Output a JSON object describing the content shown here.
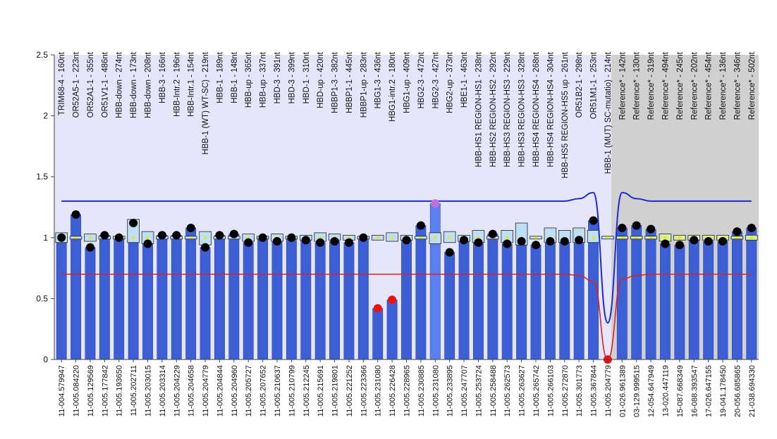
{
  "chart_data": {
    "type": "bar",
    "title": "",
    "xlabel": "",
    "ylabel": "",
    "ylim": [
      0,
      2.5
    ],
    "yticks": [
      0,
      0.5,
      1,
      1.5,
      2,
      2.5
    ],
    "ytick_labels": [
      "0",
      "0.5",
      "1",
      "1.5",
      "2",
      "2.5"
    ],
    "reference_region_start_index": 38,
    "colors": {
      "sample_region": "#e6e6fb",
      "reference_region": "#d0d0d0",
      "bar": "#3d5fd6",
      "bar_highlight": "#5b7ff0",
      "upper_limit": "#1f2bd0",
      "lower_limit": "#e02020",
      "dot": "#000000",
      "dot_low": "#ee1111",
      "dot_high": "#c070d8",
      "box_fill": "#bfe0f4",
      "box_fill_reference": "#d6f0a0",
      "median_mark": "#f5e000"
    },
    "probes": [
      "TRIM68-4 - 160nt",
      "OR52A5-1 - 223nt",
      "OR52A1-1 - 355nt",
      "OR51V1-1 - 486nt",
      "HBB-down - 274nt",
      "HBB-down - 173nt",
      "HBB-down - 208nt",
      "HBB-3 - 166nt",
      "HBB-Intr.2 - 196nt",
      "HBB-Intr.1 - 154nt",
      "HBB-1 (WT) WT-SC) - 219nt",
      "HBB-1 - 189nt",
      "HBB-1 - 148nt",
      "HBB-up - 365nt",
      "HBB-up - 337nt",
      "HBD-3 - 391nt",
      "HBD-3 - 399nt",
      "HBD-1 - 310nt",
      "HBD-up - 420nt",
      "HBBP1-3 - 382nt",
      "HBBP1-1 - 445nt",
      "HBBP1-up - 283nt",
      "HBG1-3 - 436nt",
      "HBG1-intr.2 - 180nt",
      "HBG1-up - 409nt",
      "HBG2-3 - 472nt",
      "HBG2-3 - 427nt",
      "HBG2-up - 373nt",
      "HBE1-1 - 463nt",
      "HBB-HS1 REGION-HS1 - 238nt",
      "HBB-HS2 REGION-HS2 - 292nt",
      "HBB-HS3 REGION-HS3 - 229nt",
      "HBB-HS3 REGION-HS3 - 328nt",
      "HBB-HS4 REGION-HS4 - 268nt",
      "HBB-HS4 REGION-HS4 - 304nt",
      "HBB-HS5 REGION-HS5 up - 261nt",
      "OR51B2-1 - 298nt",
      "OR51M1-1 - 253nt",
      "HBB-1 (MUT) SC-mutatio) - 214nt",
      "Reference* - 142nt",
      "Reference* - 130nt",
      "Reference* - 319nt",
      "Reference* - 494nt",
      "Reference* - 245nt",
      "Reference* - 202nt",
      "Reference* - 454nt",
      "Reference* - 136nt",
      "Reference* - 346nt",
      "Reference* - 502nt"
    ],
    "categories": [
      "11-004.579947",
      "11-005.084220",
      "11-005.129569",
      "11-005.177842",
      "11-005.193650",
      "11-005.202711",
      "11-005.203015",
      "11-005.203314",
      "11-005.204229",
      "11-005.204658",
      "11-005.204779",
      "11-005.204844",
      "11-005.204960",
      "11-005.205727",
      "11-005.207652",
      "11-005.210637",
      "11-005.210799",
      "11-005.212245",
      "11-005.215691",
      "11-005.219801",
      "11-005.221252",
      "11-005.223366",
      "11-005.231080",
      "11-005.226428",
      "11-005.228965",
      "11-005.230885",
      "11-005.231080",
      "11-005.233895",
      "11-005.247707",
      "11-005.253724",
      "11-005.258488",
      "11-005.262573",
      "11-005.263627",
      "11-005.265742",
      "11-005.266103",
      "11-005.272870",
      "11-005.301773",
      "11-005.367844",
      "11-005.204779",
      "01-026.961389",
      "03-129.999515",
      "12-054.647949",
      "13-020.447119",
      "15-087.668349",
      "16-088.393547",
      "17-026.647155",
      "19-041.178450",
      "20-056.685865",
      "21-038.694330"
    ],
    "series": [
      {
        "values": [
          1.0,
          1.19,
          0.92,
          1.02,
          1.0,
          1.12,
          0.95,
          1.02,
          1.02,
          1.08,
          0.92,
          1.02,
          1.03,
          0.96,
          1.0,
          0.97,
          1.0,
          0.98,
          0.96,
          0.97,
          0.96,
          1.0,
          0.42,
          0.49,
          0.98,
          1.1,
          1.28,
          0.88,
          0.98,
          0.96,
          1.03,
          0.95,
          0.97,
          0.94,
          0.97,
          0.97,
          0.98,
          1.14,
          0.0,
          1.08,
          1.1,
          1.07,
          0.95,
          0.94,
          0.98,
          0.97,
          0.97,
          1.05,
          1.08
        ]
      }
    ],
    "box_ranges": [
      [
        0.96,
        1.04
      ],
      [
        1.0,
        1.0
      ],
      [
        0.97,
        1.03
      ],
      [
        1.0,
        1.0
      ],
      [
        1.0,
        1.0
      ],
      [
        0.96,
        1.15
      ],
      [
        0.95,
        1.05
      ],
      [
        1.0,
        1.0
      ],
      [
        1.0,
        1.0
      ],
      [
        1.0,
        1.0
      ],
      [
        0.94,
        1.05
      ],
      [
        1.0,
        1.0
      ],
      [
        1.0,
        1.0
      ],
      [
        0.97,
        1.03
      ],
      [
        1.0,
        1.0
      ],
      [
        0.97,
        1.03
      ],
      [
        1.0,
        1.0
      ],
      [
        0.98,
        1.02
      ],
      [
        0.97,
        1.04
      ],
      [
        0.98,
        1.03
      ],
      [
        0.98,
        1.02
      ],
      [
        1.0,
        1.0
      ],
      [
        0.98,
        1.02
      ],
      [
        0.97,
        1.04
      ],
      [
        0.98,
        1.02
      ],
      [
        1.0,
        1.0
      ],
      [
        0.95,
        1.04
      ],
      [
        0.96,
        1.05
      ],
      [
        0.97,
        1.02
      ],
      [
        0.96,
        1.06
      ],
      [
        1.0,
        1.0
      ],
      [
        0.96,
        1.06
      ],
      [
        0.94,
        1.12
      ],
      [
        1.0,
        1.0
      ],
      [
        0.96,
        1.08
      ],
      [
        0.96,
        1.06
      ],
      [
        0.96,
        1.08
      ],
      [
        0.96,
        1.06
      ],
      [
        1.0,
        1.0
      ],
      [
        1.0,
        1.0
      ],
      [
        1.0,
        1.0
      ],
      [
        1.0,
        1.0
      ],
      [
        0.97,
        1.03
      ],
      [
        0.98,
        1.02
      ],
      [
        0.98,
        1.02
      ],
      [
        0.98,
        1.02
      ],
      [
        0.98,
        1.02
      ],
      [
        1.0,
        1.0
      ],
      [
        0.98,
        1.02
      ]
    ],
    "upper_limit": [
      1.3,
      1.3,
      1.3,
      1.3,
      1.3,
      1.3,
      1.3,
      1.3,
      1.3,
      1.3,
      1.3,
      1.3,
      1.3,
      1.3,
      1.3,
      1.3,
      1.3,
      1.3,
      1.3,
      1.3,
      1.3,
      1.3,
      1.3,
      1.3,
      1.3,
      1.3,
      1.3,
      1.3,
      1.3,
      1.3,
      1.3,
      1.3,
      1.3,
      1.3,
      1.3,
      1.3,
      1.32,
      1.37,
      0.3,
      1.37,
      1.32,
      1.3,
      1.3,
      1.3,
      1.3,
      1.3,
      1.3,
      1.3,
      1.3
    ],
    "lower_limit": [
      0.7,
      0.7,
      0.7,
      0.7,
      0.7,
      0.7,
      0.7,
      0.7,
      0.7,
      0.7,
      0.7,
      0.7,
      0.7,
      0.7,
      0.7,
      0.7,
      0.7,
      0.7,
      0.7,
      0.7,
      0.7,
      0.7,
      0.7,
      0.7,
      0.7,
      0.7,
      0.7,
      0.7,
      0.7,
      0.7,
      0.7,
      0.7,
      0.7,
      0.7,
      0.7,
      0.7,
      0.69,
      0.64,
      0.0,
      0.66,
      0.69,
      0.7,
      0.7,
      0.7,
      0.7,
      0.7,
      0.7,
      0.7,
      0.7
    ],
    "grid": false,
    "legend": "none"
  }
}
